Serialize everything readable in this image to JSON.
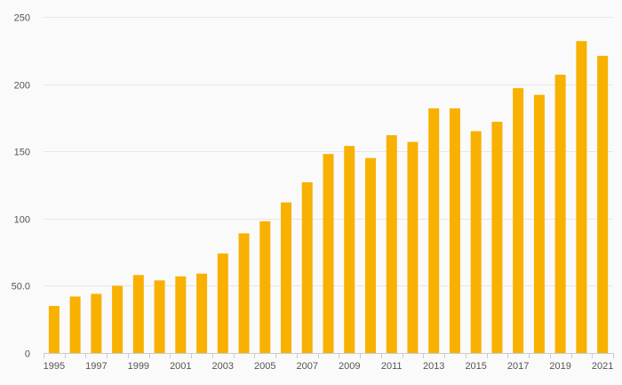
{
  "chart_data": {
    "type": "bar",
    "title": "",
    "xlabel": "",
    "ylabel": "",
    "categories": [
      "1995",
      "1996",
      "1997",
      "1998",
      "1999",
      "2000",
      "2001",
      "2002",
      "2003",
      "2004",
      "2005",
      "2006",
      "2007",
      "2008",
      "2009",
      "2010",
      "2011",
      "2012",
      "2013",
      "2014",
      "2015",
      "2016",
      "2017",
      "2018",
      "2019",
      "2020",
      "2021"
    ],
    "series": [
      {
        "values": [
          35,
          42,
          44,
          50,
          58,
          54,
          57,
          59,
          74,
          89,
          98,
          112,
          127,
          148,
          154,
          145,
          162,
          157,
          182,
          182,
          165,
          172,
          197,
          192,
          207,
          232,
          221
        ],
        "color": "#f8b100"
      }
    ],
    "ylim": [
      0,
      250
    ],
    "y_ticks": [
      {
        "value": 0,
        "label": "0"
      },
      {
        "value": 50,
        "label": "50.0"
      },
      {
        "value": 100,
        "label": "100"
      },
      {
        "value": 150,
        "label": "150"
      },
      {
        "value": 200,
        "label": "200"
      },
      {
        "value": 250,
        "label": "250"
      }
    ],
    "x_tick_labels": [
      "1995",
      "1997",
      "1999",
      "2001",
      "2003",
      "2005",
      "2007",
      "2009",
      "2011",
      "2013",
      "2015",
      "2017",
      "2019",
      "2021"
    ],
    "grid": true,
    "legend": "none"
  }
}
